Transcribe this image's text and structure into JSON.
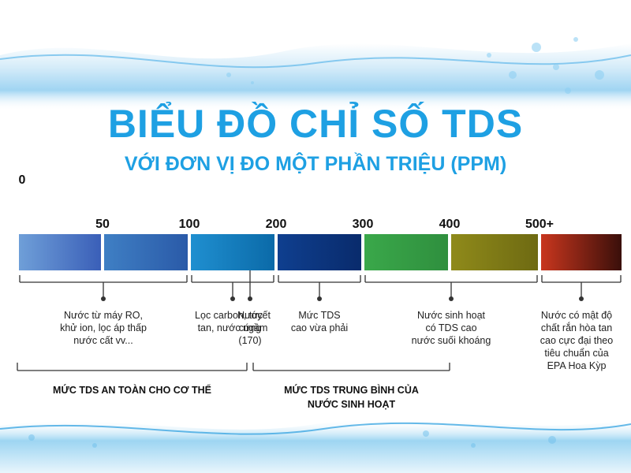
{
  "title": "BIỂU ĐỒ CHỈ SỐ TDS",
  "subtitle": "VỚI ĐƠN VỊ ĐO MỘT PHẦN TRIỆU (PPM)",
  "colors": {
    "title": "#1ea0e3",
    "bracket": "#333333"
  },
  "chart_data": {
    "type": "bar",
    "orientation": "horizontal-scale",
    "unit": "PPM",
    "scale_labels": [
      "0",
      "50",
      "100",
      "200",
      "300",
      "400",
      "500+"
    ],
    "segments": [
      {
        "from": 0,
        "to": 50,
        "gradient": [
          "#6f9fd8",
          "#3a5fb8"
        ]
      },
      {
        "from": 50,
        "to": 100,
        "gradient": [
          "#3f7fc4",
          "#2a5aa8"
        ]
      },
      {
        "from": 100,
        "to": 200,
        "gradient": [
          "#1f8fd0",
          "#0b6aa8"
        ]
      },
      {
        "from": 200,
        "to": 300,
        "gradient": [
          "#0f3f8f",
          "#092b6c"
        ]
      },
      {
        "from": 300,
        "to": 400,
        "gradient": [
          "#3aa84a",
          "#2f8f3e"
        ]
      },
      {
        "from": 400,
        "to": 500,
        "gradient": [
          "#8f8a1a",
          "#6e6a12"
        ]
      },
      {
        "from": 500,
        "to": null,
        "gradient": [
          "#c8361e",
          "#3a0f0a"
        ]
      }
    ],
    "annotations": [
      {
        "range": [
          0,
          100
        ],
        "text": "Nước từ máy RO,\nkhử ion, lọc áp thấp\nnước cất vv..."
      },
      {
        "range": [
          100,
          200
        ],
        "text": "Lọc carbon, tuyết\ntan, nước ngầm"
      },
      {
        "value": 170,
        "text": "Nước\ncứng\n(170)"
      },
      {
        "range": [
          200,
          300
        ],
        "text": "Mức TDS\ncao vừa phải"
      },
      {
        "range": [
          300,
          500
        ],
        "text": "Nước sinh hoạt\ncó TDS cao\nnước suối khoáng"
      },
      {
        "range": [
          500,
          null
        ],
        "text": "Nước có mật độ\nchất rắn hòa tan\ncao cực đại theo\ntiêu chuẩn của\nEPA Hoa Kỳp"
      }
    ],
    "groups": [
      {
        "range": [
          0,
          170
        ],
        "text": "MỨC TDS AN TOÀN CHO CƠ THỂ"
      },
      {
        "range": [
          170,
          400
        ],
        "text": "MỨC TDS TRUNG BÌNH CỦA\nNƯỚC SINH HOẠT"
      }
    ]
  }
}
